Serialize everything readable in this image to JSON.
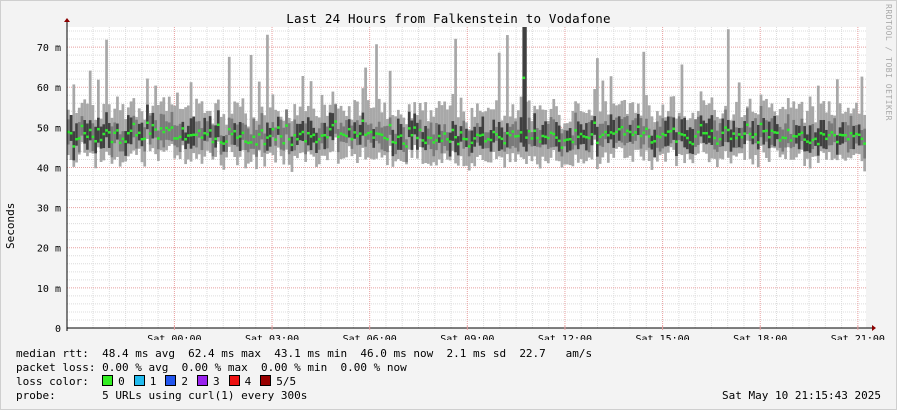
{
  "title": "Last 24 Hours from Falkenstein to Vodafone",
  "ylabel": "Seconds",
  "watermark": "RRDTOOL / TOBI OETIKER",
  "colors": {
    "background": "#f3f3f3",
    "canvas": "#ffffff",
    "grid_minor": "#dcdcdc",
    "grid_major": "#e8a0a0",
    "smoke_light": "#a8a8a8",
    "smoke_mid": "#7a7a7a",
    "smoke_dark": "#404040",
    "median": "#2ee82e",
    "axis_arrow": "#8b0000"
  },
  "stats": {
    "median_rtt": "median rtt:  48.4 ms avg  62.4 ms max  43.1 ms min  46.0 ms now  2.1 ms sd  22.7   am/s",
    "packet_loss": "packet loss: 0.00 % avg  0.00 % max  0.00 % min  0.00 % now",
    "loss_color_label": "loss color:",
    "probe": "probe:       5 URLs using curl(1) every 300s"
  },
  "loss_colors": [
    {
      "label": "0",
      "color": "#33ee22",
      "icon": "square-swatch-icon"
    },
    {
      "label": "1",
      "color": "#22bbee",
      "icon": "square-swatch-icon"
    },
    {
      "label": "2",
      "color": "#2255ee",
      "icon": "square-swatch-icon"
    },
    {
      "label": "3",
      "color": "#9922ee",
      "icon": "square-swatch-icon"
    },
    {
      "label": "4",
      "color": "#ee1111",
      "icon": "square-swatch-icon"
    },
    {
      "label": "5/5",
      "color": "#990000",
      "icon": "square-swatch-icon"
    }
  ],
  "timestamp": "Sat May 10 21:15:43 2025",
  "chart_data": {
    "type": "area",
    "title": "Last 24 Hours from Falkenstein to Vodafone",
    "xlabel": "",
    "ylabel": "Seconds",
    "ylim": [
      0,
      0.075
    ],
    "y_ticks": [
      {
        "value": 0,
        "label": "0"
      },
      {
        "value": 0.01,
        "label": "10 m"
      },
      {
        "value": 0.02,
        "label": "20 m"
      },
      {
        "value": 0.03,
        "label": "30 m"
      },
      {
        "value": 0.04,
        "label": "40 m"
      },
      {
        "value": 0.05,
        "label": "50 m"
      },
      {
        "value": 0.06,
        "label": "60 m"
      },
      {
        "value": 0.07,
        "label": "70 m"
      }
    ],
    "x_range_hours": [
      -3.3,
      21.25
    ],
    "x_ticks": [
      {
        "hour": 0,
        "label": "Sat 00:00"
      },
      {
        "hour": 3,
        "label": "Sat 03:00"
      },
      {
        "hour": 6,
        "label": "Sat 06:00"
      },
      {
        "hour": 9,
        "label": "Sat 09:00"
      },
      {
        "hour": 12,
        "label": "Sat 12:00"
      },
      {
        "hour": 15,
        "label": "Sat 15:00"
      },
      {
        "hour": 18,
        "label": "Sat 18:00"
      },
      {
        "hour": 21,
        "label": "Sat 21:00"
      }
    ],
    "grid": true,
    "median_summary_ms": {
      "avg": 48.4,
      "max": 62.4,
      "min": 43.1,
      "now": 46.0,
      "sd": 2.1
    },
    "series": [
      {
        "name": "median rtt",
        "values_ms": [
          48.9,
          48.6,
          45.3,
          47.1,
          47.3,
          50.4,
          48.6,
          47.7,
          49.4,
          47.7,
          46.6,
          49.6,
          46.9,
          48.4,
          49.3,
          48.8,
          46.4,
          48.7,
          49.3,
          46.2,
          47.2,
          46.5,
          48.6,
          49.2,
          50.9,
          48.1,
          48.7,
          47.1,
          47.2,
          51.2,
          48.5,
          50.6,
          49.5,
          47.3,
          49.8,
          48.9,
          49.9,
          49.4,
          50.0,
          47.3,
          47.3,
          47.7,
          49.8,
          47.1,
          48.0,
          48.1,
          48.2,
          48.2,
          49.2,
          47.5,
          48.6,
          48.3,
          49.3,
          46.4,
          47.2,
          50.7,
          46.3,
          46.0,
          46.5,
          49.6,
          48.4,
          49.1,
          47.5,
          47.8,
          48.7,
          46.5,
          46.2,
          46.3,
          47.7,
          45.8,
          48.3,
          49.3,
          45.9,
          47.5,
          47.9,
          49.6,
          47.0,
          50.0,
          47.8,
          46.1,
          50.5,
          47.1,
          45.7,
          48.1,
          47.1,
          48.4,
          48.9,
          46.6,
          48.6,
          47.8,
          48.2,
          46.4,
          47.1,
          48.0,
          48.1,
          47.6,
          49.6,
          50.6,
          51.5,
          47.7,
          48.5,
          48.2,
          47.9,
          49.6,
          47.1,
          48.8,
          47.9,
          48.5,
          51.7,
          48.2,
          48.6,
          48.9,
          47.5,
          48.5,
          48.4,
          48.2,
          47.4,
          47.1,
          50.6,
          46.4,
          46.2,
          47.7,
          48.0,
          46.0,
          45.3,
          49.8,
          48.1,
          50.0,
          47.4,
          49.4,
          46.8,
          46.2,
          47.5,
          47.4,
          46.3,
          46.8,
          47.9,
          46.7,
          48.5,
          47.1,
          46.5,
          49.4,
          47.6,
          45.9,
          48.8,
          47.2,
          47.1,
          45.3,
          46.2,
          47.3,
          48.2,
          48.0,
          48.2,
          46.6,
          47.1,
          46.9,
          48.9,
          48.3,
          47.6,
          47.2,
          46.1,
          48.6,
          48.1,
          49.0,
          47.8,
          47.9,
          48.8,
          48.5,
          47.5,
          49.1,
          47.3,
          49.2,
          47.4,
          46.5,
          47.9,
          47.7,
          47.4,
          48.7,
          48.4,
          47.5,
          46.7,
          45.0,
          46.8,
          47.0,
          47.1,
          46.4,
          49.3,
          47.7,
          48.4,
          47.8,
          47.6,
          47.4,
          48.3,
          51.2,
          46.2,
          47.7,
          48.2,
          48.9,
          48.1,
          48.8,
          48.5,
          48.9,
          49.6,
          50.1,
          48.3,
          49.2,
          48.9,
          48.2,
          48.8,
          50.2,
          47.9,
          48.7,
          49.7,
          47.8,
          46.3,
          46.6,
          47.8,
          47.6,
          48.4,
          48.1,
          49.0,
          49.1,
          49.7,
          46.5,
          48.6,
          48.3,
          48.1,
          47.4,
          46.3,
          45.9,
          47.8,
          48.9,
          50.6,
          48.6,
          48.6,
          47.7,
          49.2,
          47.4,
          46.0,
          47.1,
          48.7,
          50.0,
          49.4,
          47.2,
          48.5,
          47.4,
          48.3,
          47.6,
          48.5,
          50.7,
          48.4,
          47.6,
          48.3,
          46.3,
          50.9,
          49.1,
          49.2,
          47.6,
          49.2,
          48.8,
          48.7,
          46.8,
          47.5,
          47.4,
          49.4,
          46.8,
          47.9,
          47.8,
          48.3,
          48.7,
          47.0,
          46.5,
          46.2,
          46.9,
          47.2,
          45.9,
          48.6,
          48.3,
          47.2,
          48.1,
          48.8,
          48.1,
          46.4,
          48.2,
          48.1,
          48.1,
          47.1,
          48.6,
          47.9,
          48.4,
          48.2,
          47.2,
          46.0
        ]
      },
      {
        "name": "spike",
        "index": 167,
        "values_ms": [
          62.4
        ]
      }
    ]
  }
}
